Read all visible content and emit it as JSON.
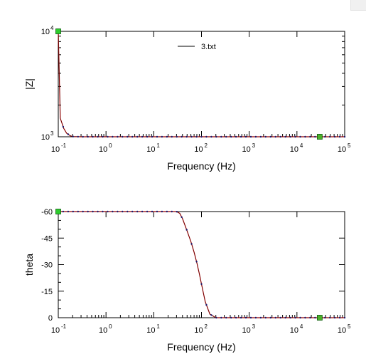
{
  "chart_data": [
    {
      "type": "line",
      "ylabel": "|Z|",
      "xlabel": "Frequency (Hz)",
      "x_scale": "log",
      "y_scale": "log",
      "xlim": [
        0.1,
        100000
      ],
      "ylim": [
        1000,
        10000
      ],
      "x_ticks": [
        {
          "base": "10",
          "exp": "-1"
        },
        {
          "base": "10",
          "exp": "0"
        },
        {
          "base": "10",
          "exp": "1"
        },
        {
          "base": "10",
          "exp": "2"
        },
        {
          "base": "10",
          "exp": "3"
        },
        {
          "base": "10",
          "exp": "4"
        },
        {
          "base": "10",
          "exp": "5"
        }
      ],
      "y_ticks": [
        {
          "base": "10",
          "exp": "3",
          "value": 1000
        },
        {
          "base": "10",
          "exp": "4",
          "value": 10000
        }
      ],
      "legend": {
        "label": "3.txt",
        "placement": "top-center"
      },
      "series": [
        {
          "name": "3.txt",
          "x": [
            0.1,
            0.11,
            0.13,
            0.15,
            0.18,
            0.2,
            0.3,
            0.5,
            1,
            2,
            5,
            10,
            20,
            50,
            100,
            200,
            500,
            1000,
            2000,
            5000,
            10000,
            30000,
            100000
          ],
          "y": [
            10000,
            1500,
            1200,
            1080,
            1020,
            1005,
            1000,
            1000,
            1000,
            1000,
            1000,
            1000,
            1000,
            1000,
            1000,
            1000,
            1000,
            1000,
            1000,
            1000,
            1000,
            1000,
            1000
          ]
        }
      ],
      "markers": [
        {
          "x": 0.1,
          "y": 10000,
          "color": "#2ecc2e"
        },
        {
          "x": 30000,
          "y": 1000,
          "color": "#4caf2a"
        }
      ],
      "colors": {
        "measured": "#000000",
        "fit": "#cc0000",
        "dots": "#1a1a6e"
      }
    },
    {
      "type": "line",
      "ylabel": "theta",
      "xlabel": "Frequency (Hz)",
      "x_scale": "log",
      "xlim": [
        0.1,
        100000
      ],
      "ylim": [
        0,
        -60
      ],
      "x_ticks": [
        {
          "base": "10",
          "exp": "-1"
        },
        {
          "base": "10",
          "exp": "0"
        },
        {
          "base": "10",
          "exp": "1"
        },
        {
          "base": "10",
          "exp": "2"
        },
        {
          "base": "10",
          "exp": "3"
        },
        {
          "base": "10",
          "exp": "4"
        },
        {
          "base": "10",
          "exp": "5"
        }
      ],
      "y_ticks": [
        "-60",
        "-45",
        "-30",
        "-15",
        "0"
      ],
      "series": [
        {
          "name": "",
          "x": [
            0.1,
            0.3,
            1,
            3,
            10,
            20,
            30,
            35,
            40,
            50,
            60,
            70,
            80,
            90,
            100,
            120,
            150,
            200,
            300,
            1000,
            10000,
            100000
          ],
          "y": [
            -60,
            -60,
            -60,
            -60,
            -60,
            -60,
            -60,
            -59,
            -56,
            -49,
            -43,
            -37,
            -31,
            -25,
            -19,
            -9,
            -2,
            0,
            0,
            0,
            0,
            0
          ]
        }
      ],
      "markers": [
        {
          "x": 0.1,
          "y": -60,
          "color": "#2ecc2e"
        },
        {
          "x": 30000,
          "y": 0,
          "color": "#4caf2a"
        }
      ],
      "colors": {
        "measured": "#000000",
        "fit": "#cc0000",
        "dots": "#1a1a6e"
      }
    }
  ]
}
